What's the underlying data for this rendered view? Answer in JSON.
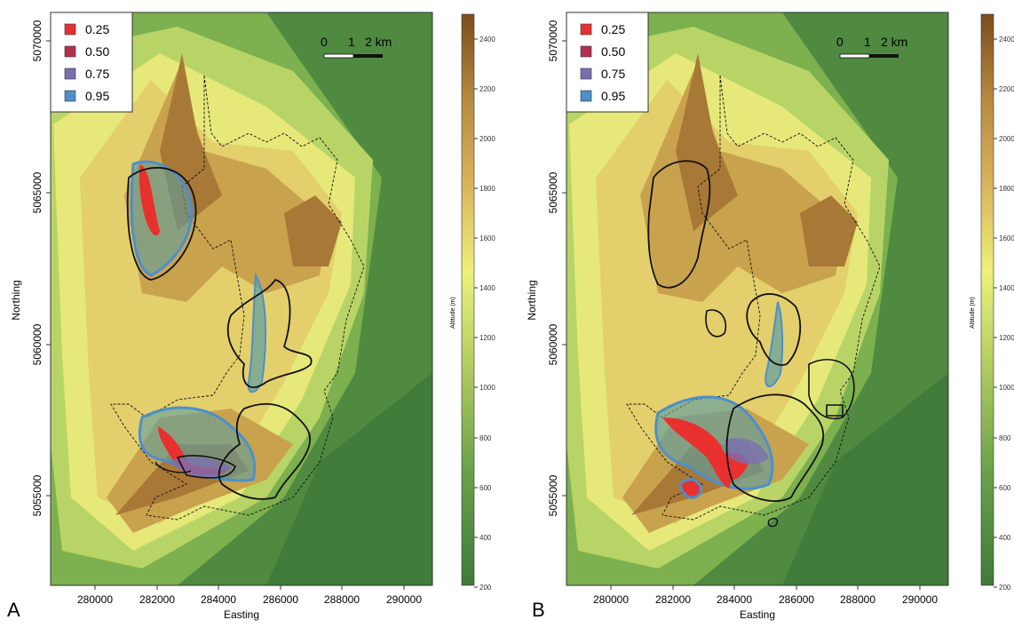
{
  "panels": [
    {
      "id": "a",
      "letter": "A",
      "xlabel": "Easting",
      "ylabel": "Northing",
      "x_ticks": [
        280000,
        282000,
        284000,
        286000,
        288000,
        290000
      ],
      "y_ticks": [
        5055000,
        5060000,
        5065000,
        5070000
      ],
      "legend": [
        {
          "label": "0.25",
          "color": "#e8312f"
        },
        {
          "label": "0.50",
          "color": "#b3304e"
        },
        {
          "label": "0.75",
          "color": "#7a6fb0"
        },
        {
          "label": "0.95",
          "color": "#4d8fcc"
        }
      ],
      "scalebar": {
        "labels": [
          "0",
          "1",
          "2 km"
        ]
      },
      "colorbar": {
        "title": "Altitude (m)",
        "ticks": [
          200,
          400,
          600,
          800,
          1000,
          1200,
          1400,
          1600,
          1800,
          2000,
          2200,
          2400
        ]
      }
    },
    {
      "id": "b",
      "letter": "B",
      "xlabel": "Easting",
      "ylabel": "Northing",
      "x_ticks": [
        280000,
        282000,
        284000,
        286000,
        288000,
        290000
      ],
      "y_ticks": [
        5055000,
        5060000,
        5065000,
        5070000
      ],
      "legend": [
        {
          "label": "0.25",
          "color": "#e8312f"
        },
        {
          "label": "0.50",
          "color": "#b3304e"
        },
        {
          "label": "0.75",
          "color": "#7a6fb0"
        },
        {
          "label": "0.95",
          "color": "#4d8fcc"
        }
      ],
      "scalebar": {
        "labels": [
          "0",
          "1",
          "2 km"
        ]
      },
      "colorbar": {
        "title": "Altitude (m)",
        "ticks": [
          200,
          400,
          600,
          800,
          1000,
          1200,
          1400,
          1600,
          1800,
          2000,
          2200,
          2400
        ]
      }
    }
  ],
  "colors": {
    "altitude_low": "#3f7a3a",
    "altitude_mid": "#eef07a",
    "altitude_high": "#8a5a1e"
  }
}
